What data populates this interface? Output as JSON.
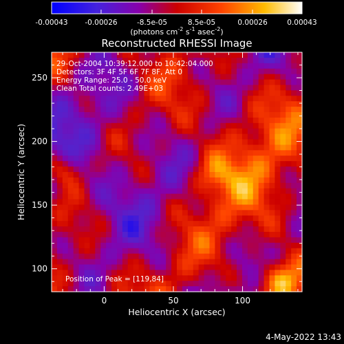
{
  "chart_data": {
    "type": "heatmap",
    "title": "Reconstructed RHESSI Image",
    "xlabel": "Heliocentric X (arcsec)",
    "ylabel": "Heliocentric Y (arcsec)",
    "xlim": [
      -38,
      143
    ],
    "ylim": [
      82,
      270
    ],
    "x_ticks": [
      0,
      50,
      100
    ],
    "y_ticks": [
      100,
      150,
      200,
      250
    ],
    "colorbar": {
      "ticks": [
        -0.00043,
        -0.00026,
        -8.5e-05,
        8.5e-05,
        0.00026,
        0.00043
      ],
      "tick_labels": [
        "-0.00043",
        "-0.00026",
        "-8.5e-05",
        "8.5e-05",
        "0.00026",
        "0.00043"
      ],
      "range": [
        -0.00043,
        0.00043
      ],
      "unit_text": "(photons cm",
      "unit_exp1": "-2",
      "unit_mid": " s",
      "unit_exp2": "-1",
      "unit_after": " asec",
      "unit_exp3": "-2",
      "unit_close": ")",
      "colors": [
        "#0000ff",
        "#5522cc",
        "#8800aa",
        "#cc0000",
        "#ff4400",
        "#ffbb00",
        "#ffffff"
      ]
    },
    "annotations": [
      "29-Oct-2004 10:39:12.000 to 10:42:04.000",
      "Detectors: 3F 4F 5F 6F 7F 8F, Att 0",
      "Energy Range: 25.0 - 50.0 keV",
      "Clean     Total counts: 2.49E+03"
    ],
    "peak_label": "Position of Peak = [119,84]",
    "peak": [
      119,
      84
    ]
  },
  "footer": {
    "date": "4-May-2022 13:43"
  }
}
